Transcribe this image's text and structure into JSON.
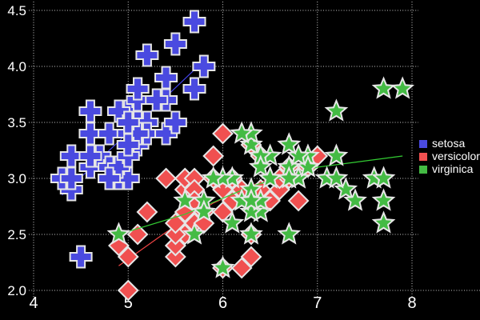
{
  "chart_data": {
    "type": "scatter",
    "title": "",
    "xlabel": "",
    "ylabel": "",
    "xlim": [
      4,
      8
    ],
    "ylim": [
      2.0,
      4.5
    ],
    "x_ticks": [
      4,
      5,
      6,
      7,
      8
    ],
    "x_tick_labels": [
      "4",
      "5",
      "6",
      "7",
      "8"
    ],
    "y_ticks": [
      2.0,
      2.5,
      3.0,
      3.5,
      4.0,
      4.5
    ],
    "y_tick_labels": [
      "2.0",
      "2.5",
      "3.0",
      "3.5",
      "4.0",
      "4.5"
    ],
    "grid": "dotted",
    "legend_position": "right",
    "colors": {
      "background": "#000000",
      "text": "#ffffff",
      "grid": "#c9c9c9",
      "marker_outline": "#e6e6e6"
    },
    "series": [
      {
        "name": "setosa",
        "marker": "plus",
        "color": "#4a4ae0",
        "trend_color": "#4444ee",
        "trend": [
          [
            4.3,
            2.85
          ],
          [
            5.8,
            4.05
          ]
        ],
        "points": [
          [
            5.1,
            3.5
          ],
          [
            4.9,
            3.0
          ],
          [
            4.7,
            3.2
          ],
          [
            4.6,
            3.1
          ],
          [
            5.0,
            3.6
          ],
          [
            5.4,
            3.9
          ],
          [
            4.6,
            3.4
          ],
          [
            5.0,
            3.4
          ],
          [
            4.4,
            2.9
          ],
          [
            4.9,
            3.1
          ],
          [
            5.4,
            3.7
          ],
          [
            4.8,
            3.4
          ],
          [
            4.8,
            3.0
          ],
          [
            4.3,
            3.0
          ],
          [
            5.8,
            4.0
          ],
          [
            5.7,
            4.4
          ],
          [
            5.4,
            3.9
          ],
          [
            5.1,
            3.5
          ],
          [
            5.7,
            3.8
          ],
          [
            5.1,
            3.8
          ],
          [
            5.4,
            3.4
          ],
          [
            5.1,
            3.7
          ],
          [
            4.6,
            3.6
          ],
          [
            5.1,
            3.3
          ],
          [
            4.8,
            3.4
          ],
          [
            5.0,
            3.0
          ],
          [
            5.0,
            3.4
          ],
          [
            5.2,
            3.5
          ],
          [
            5.2,
            3.4
          ],
          [
            4.7,
            3.2
          ],
          [
            4.8,
            3.1
          ],
          [
            5.4,
            3.4
          ],
          [
            5.2,
            4.1
          ],
          [
            5.5,
            4.2
          ],
          [
            4.9,
            3.1
          ],
          [
            5.0,
            3.2
          ],
          [
            5.5,
            3.5
          ],
          [
            4.9,
            3.6
          ],
          [
            4.4,
            3.0
          ],
          [
            5.1,
            3.4
          ],
          [
            5.0,
            3.5
          ],
          [
            4.5,
            2.3
          ],
          [
            4.4,
            3.2
          ],
          [
            5.0,
            3.5
          ],
          [
            5.1,
            3.8
          ],
          [
            4.8,
            3.0
          ],
          [
            5.1,
            3.8
          ],
          [
            4.6,
            3.2
          ],
          [
            5.3,
            3.7
          ],
          [
            5.0,
            3.3
          ]
        ]
      },
      {
        "name": "versicolor",
        "marker": "diamond",
        "color": "#f05050",
        "trend_color": "#ee4444",
        "trend": [
          [
            4.9,
            2.22
          ],
          [
            5.4,
            2.52
          ],
          [
            5.9,
            2.78
          ],
          [
            6.4,
            2.97
          ],
          [
            7.0,
            3.1
          ]
        ],
        "points": [
          [
            7.0,
            3.2
          ],
          [
            6.4,
            3.2
          ],
          [
            6.9,
            3.1
          ],
          [
            5.5,
            2.3
          ],
          [
            6.5,
            2.8
          ],
          [
            5.7,
            2.8
          ],
          [
            6.3,
            3.3
          ],
          [
            4.9,
            2.4
          ],
          [
            6.6,
            2.9
          ],
          [
            5.2,
            2.7
          ],
          [
            5.0,
            2.0
          ],
          [
            5.9,
            3.0
          ],
          [
            6.0,
            2.2
          ],
          [
            6.1,
            2.9
          ],
          [
            5.6,
            2.9
          ],
          [
            6.7,
            3.1
          ],
          [
            5.6,
            3.0
          ],
          [
            5.8,
            2.7
          ],
          [
            6.2,
            2.2
          ],
          [
            5.6,
            2.5
          ],
          [
            5.9,
            3.2
          ],
          [
            6.1,
            2.8
          ],
          [
            6.3,
            2.5
          ],
          [
            6.1,
            2.8
          ],
          [
            6.4,
            2.9
          ],
          [
            6.6,
            3.0
          ],
          [
            6.8,
            2.8
          ],
          [
            6.7,
            3.0
          ],
          [
            6.0,
            2.9
          ],
          [
            5.7,
            2.6
          ],
          [
            5.5,
            2.4
          ],
          [
            5.5,
            2.4
          ],
          [
            5.8,
            2.7
          ],
          [
            6.0,
            2.7
          ],
          [
            5.4,
            3.0
          ],
          [
            6.0,
            3.4
          ],
          [
            6.7,
            3.1
          ],
          [
            6.3,
            2.3
          ],
          [
            5.6,
            3.0
          ],
          [
            5.5,
            2.5
          ],
          [
            5.5,
            2.6
          ],
          [
            6.1,
            3.0
          ],
          [
            5.8,
            2.6
          ],
          [
            5.0,
            2.3
          ],
          [
            5.6,
            2.7
          ],
          [
            5.7,
            3.0
          ],
          [
            5.7,
            2.9
          ],
          [
            6.2,
            2.9
          ],
          [
            5.1,
            2.5
          ],
          [
            5.7,
            2.8
          ]
        ]
      },
      {
        "name": "virginica",
        "marker": "star",
        "color": "#44bb44",
        "trend_color": "#33cc33",
        "trend": [
          [
            4.9,
            2.5
          ],
          [
            5.6,
            2.68
          ],
          [
            6.3,
            2.93
          ],
          [
            7.0,
            3.1
          ],
          [
            7.9,
            3.2
          ]
        ],
        "points": [
          [
            6.3,
            3.3
          ],
          [
            5.8,
            2.7
          ],
          [
            7.1,
            3.0
          ],
          [
            6.3,
            2.9
          ],
          [
            6.5,
            3.0
          ],
          [
            7.6,
            3.0
          ],
          [
            4.9,
            2.5
          ],
          [
            7.3,
            2.9
          ],
          [
            6.7,
            2.5
          ],
          [
            7.2,
            3.6
          ],
          [
            6.5,
            3.2
          ],
          [
            6.4,
            2.7
          ],
          [
            6.8,
            3.0
          ],
          [
            5.7,
            2.5
          ],
          [
            5.8,
            2.8
          ],
          [
            6.4,
            3.2
          ],
          [
            6.5,
            3.0
          ],
          [
            7.7,
            3.8
          ],
          [
            7.7,
            2.6
          ],
          [
            6.0,
            2.2
          ],
          [
            6.9,
            3.2
          ],
          [
            5.6,
            2.8
          ],
          [
            7.7,
            2.8
          ],
          [
            6.3,
            2.7
          ],
          [
            6.7,
            3.3
          ],
          [
            7.2,
            3.2
          ],
          [
            6.2,
            2.8
          ],
          [
            6.1,
            3.0
          ],
          [
            6.4,
            2.8
          ],
          [
            7.2,
            3.0
          ],
          [
            7.4,
            2.8
          ],
          [
            7.9,
            3.8
          ],
          [
            6.4,
            2.8
          ],
          [
            6.3,
            2.8
          ],
          [
            6.1,
            2.6
          ],
          [
            7.7,
            3.0
          ],
          [
            6.3,
            3.4
          ],
          [
            6.4,
            3.1
          ],
          [
            6.0,
            3.0
          ],
          [
            6.9,
            3.1
          ],
          [
            6.7,
            3.1
          ],
          [
            6.9,
            3.1
          ],
          [
            5.8,
            2.7
          ],
          [
            6.8,
            3.2
          ],
          [
            6.7,
            3.3
          ],
          [
            6.7,
            3.0
          ],
          [
            6.3,
            2.5
          ],
          [
            6.5,
            3.0
          ],
          [
            6.2,
            3.4
          ],
          [
            5.9,
            3.0
          ]
        ]
      }
    ]
  }
}
